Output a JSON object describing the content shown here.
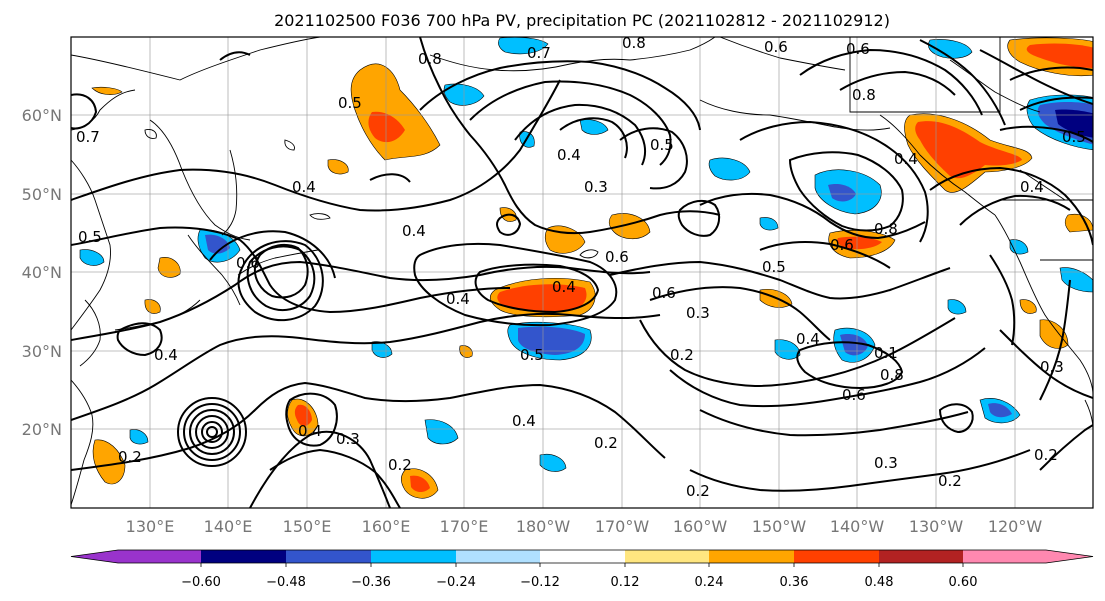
{
  "title": "2021102500 F036 700 hPa PV, precipitation PC (2021102812 - 2021102912)",
  "lon_ticks": [
    "130°E",
    "140°E",
    "150°E",
    "160°E",
    "170°E",
    "180°W",
    "170°W",
    "160°W",
    "150°W",
    "140°W",
    "130°W",
    "120°W"
  ],
  "lat_ticks": [
    "60°N",
    "50°N",
    "40°N",
    "30°N",
    "20°N"
  ],
  "colorbar": {
    "ticks": [
      "−0.60",
      "−0.48",
      "−0.36",
      "−0.24",
      "−0.12",
      "0.12",
      "0.24",
      "0.36",
      "0.48",
      "0.60"
    ],
    "colors": [
      "#9933cc",
      "#000080",
      "#3355cc",
      "#00bfff",
      "#b0e0ff",
      "#ffffff",
      "#ffe680",
      "#ffa500",
      "#ff4000",
      "#b22222",
      "#ff88b0"
    ]
  },
  "contour_labels": [
    {
      "text": "0.8"
    },
    {
      "text": "0.7"
    },
    {
      "text": "0.8"
    },
    {
      "text": "0.6"
    },
    {
      "text": "0.6"
    },
    {
      "text": "0.8"
    },
    {
      "text": "0.5"
    },
    {
      "text": "0.4"
    },
    {
      "text": "0.5"
    },
    {
      "text": "0.4"
    },
    {
      "text": "0.3"
    },
    {
      "text": "0.4"
    },
    {
      "text": "0.5"
    },
    {
      "text": "0.4"
    },
    {
      "text": "0.6"
    },
    {
      "text": "0.4"
    },
    {
      "text": "0.6"
    },
    {
      "text": "0.5"
    },
    {
      "text": "0.8"
    },
    {
      "text": "0.6"
    },
    {
      "text": "0.3"
    },
    {
      "text": "0.2"
    },
    {
      "text": "0.4"
    },
    {
      "text": "0.5"
    },
    {
      "text": "0.4"
    },
    {
      "text": "0.1"
    },
    {
      "text": "0.8"
    },
    {
      "text": "0.6"
    },
    {
      "text": "0.4"
    },
    {
      "text": "0.3"
    },
    {
      "text": "0.4"
    },
    {
      "text": "0.2"
    },
    {
      "text": "0.2"
    },
    {
      "text": "0.2"
    },
    {
      "text": "0.3"
    },
    {
      "text": "0.2"
    },
    {
      "text": "0.2"
    },
    {
      "text": "0.2"
    },
    {
      "text": "0.4"
    },
    {
      "text": "0.7"
    },
    {
      "text": "0.5"
    },
    {
      "text": "0.6"
    },
    {
      "text": "0.4"
    },
    {
      "text": "0.3"
    }
  ]
}
